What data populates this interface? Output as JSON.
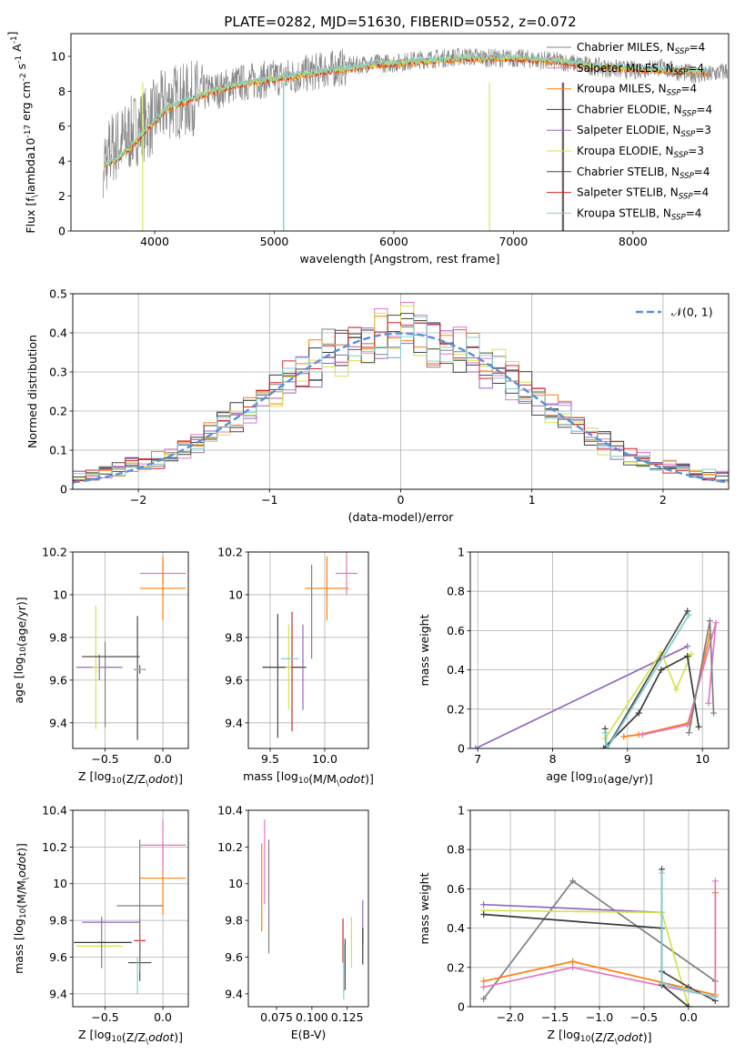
{
  "figure_title": "PLATE=0282, MJD=51630, FIBERID=0552, z=0.072",
  "series_colors": [
    "#808080",
    "#e377c2",
    "#ff7f0e",
    "#3a3a3a",
    "#9467bd",
    "#d4e34a",
    "#4a4a4a",
    "#d62728",
    "#7fd0d0"
  ],
  "chart_data": [
    {
      "id": "spectrum",
      "type": "line",
      "xlabel": "wavelength [Angstrom, rest frame]",
      "ylabel": "Flux [f$_\\lambda$10$^{-17}$ erg cm$^{-2}$ s$^{-1}$ A$^{-1}$]",
      "xlim": [
        3300,
        8800
      ],
      "ylim": [
        0,
        11.3
      ],
      "xticks": [
        4000,
        5000,
        6000,
        7000,
        8000
      ],
      "yticks": [
        0,
        2,
        4,
        6,
        8,
        10
      ],
      "grid": false,
      "legend_position": "right",
      "legend": [
        {
          "imf": "Chabrier MILES",
          "nssp": "4"
        },
        {
          "imf": "Salpeter MILES",
          "nssp": "4"
        },
        {
          "imf": "Kroupa MILES",
          "nssp": "4"
        },
        {
          "imf": "Chabrier ELODIE",
          "nssp": "4"
        },
        {
          "imf": "Salpeter ELODIE",
          "nssp": "3"
        },
        {
          "imf": "Kroupa ELODIE",
          "nssp": "3"
        },
        {
          "imf": "Chabrier STELIB",
          "nssp": "4"
        },
        {
          "imf": "Salpeter STELIB",
          "nssp": "4"
        },
        {
          "imf": "Kroupa STELIB",
          "nssp": "4"
        }
      ],
      "data_wavelength": [
        3550,
        3650,
        3750,
        3850,
        3950,
        4050,
        4150,
        4250,
        4350,
        4450,
        4550,
        4650,
        4750,
        4850,
        4950,
        5050,
        5200,
        5400,
        5600,
        5800,
        6000,
        6200,
        6400,
        6600,
        6800,
        7000,
        7200,
        7400,
        7600,
        7800,
        8000,
        8200,
        8400,
        8600,
        8800
      ],
      "data_flux": [
        3.9,
        4.8,
        5.2,
        5.9,
        6.2,
        7.0,
        7.5,
        7.4,
        7.7,
        8.0,
        8.1,
        8.4,
        8.5,
        8.6,
        8.7,
        8.8,
        8.9,
        9.2,
        9.4,
        9.6,
        9.6,
        9.8,
        9.9,
        10.0,
        9.9,
        9.9,
        9.8,
        9.7,
        9.5,
        9.3,
        9.2,
        9.4,
        9.1,
        8.9,
        9.2
      ],
      "model_wavelength": [
        3600,
        3700,
        3800,
        3900,
        4000,
        4100,
        4200,
        4300,
        4400,
        4500,
        4600,
        4700,
        4800,
        4900,
        5000,
        5200,
        5400,
        5600,
        5800,
        6000,
        6200,
        6400,
        6600,
        6800,
        7000,
        7200,
        7400,
        7600,
        7800,
        8000,
        8200,
        8400,
        8600
      ],
      "model_flux": [
        3.8,
        4.2,
        4.8,
        5.6,
        6.3,
        7.0,
        7.3,
        7.5,
        7.8,
        8.0,
        8.2,
        8.4,
        8.5,
        8.6,
        8.7,
        8.9,
        9.1,
        9.3,
        9.5,
        9.6,
        9.7,
        9.8,
        9.9,
        9.9,
        9.9,
        9.8,
        9.7,
        9.5,
        9.4,
        9.3,
        9.2,
        9.2,
        9.1
      ]
    },
    {
      "id": "residuals",
      "type": "line",
      "xlabel": "(data-model)/error",
      "ylabel": "Normed distribution",
      "xlim": [
        -2.5,
        2.5
      ],
      "ylim": [
        0,
        0.5
      ],
      "xticks": [
        -2,
        -1,
        0,
        1,
        2
      ],
      "yticks": [
        0.0,
        0.1,
        0.2,
        0.3,
        0.4,
        0.5
      ],
      "grid": true,
      "legend_position": "top-right",
      "gaussian_label": "𝒩(0, 1)",
      "hist_bin_width": 0.1
    },
    {
      "id": "age_vs_Z",
      "type": "scatter",
      "xlabel": "Z [log$_{10}$(Z/Z$_\\odot$)]",
      "ylabel": "age  [log$_{10}$(age/yr)]",
      "xlim": [
        -0.78,
        0.22
      ],
      "ylim": [
        9.28,
        10.2
      ],
      "xticks": [
        -0.5,
        0.0
      ],
      "xticklabels": [
        "−0.5",
        "0.0"
      ],
      "yticks": [
        9.4,
        9.6,
        9.8,
        10.0,
        10.2
      ],
      "grid": true,
      "points": [
        {
          "x": -0.5,
          "y": 9.58,
          "xerr": 0.0,
          "yerr": 0.2,
          "series": 0
        },
        {
          "x": -0.55,
          "y": 9.66,
          "xerr": 0.2,
          "yerr": 0.06,
          "series": 4
        },
        {
          "x": -0.58,
          "y": 9.66,
          "xerr": 0.03,
          "yerr": 0.29,
          "series": 5
        },
        {
          "x": -0.45,
          "y": 9.71,
          "xerr": 0.25,
          "yerr": 0.0,
          "series": 3
        },
        {
          "x": -0.22,
          "y": 9.61,
          "xerr": 0.0,
          "yerr": 0.29,
          "series": 6
        },
        {
          "x": -0.2,
          "y": 9.65,
          "xerr": 0.05,
          "yerr": 0.02,
          "series": 7
        },
        {
          "x": -0.2,
          "y": 9.65,
          "xerr": 0.04,
          "yerr": 0.0,
          "series": 8
        },
        {
          "x": 0.0,
          "y": 10.1,
          "xerr": 0.2,
          "yerr": 0.05,
          "series": 1
        },
        {
          "x": 0.0,
          "y": 10.03,
          "xerr": 0.2,
          "yerr": 0.15,
          "series": 2
        }
      ]
    },
    {
      "id": "age_vs_mass",
      "type": "scatter",
      "xlabel": "mass [log$_{10}$(M/M$_\\odot$)]",
      "ylabel": "",
      "xlim": [
        9.3,
        10.4
      ],
      "ylim": [
        9.28,
        10.2
      ],
      "xticks": [
        9.5,
        10.0
      ],
      "xticklabels": [
        "9.5",
        "10.0"
      ],
      "yticks": [
        9.4,
        9.6,
        9.8,
        10.0,
        10.2
      ],
      "grid": true,
      "points": [
        {
          "x": 9.57,
          "y": 9.62,
          "xerr": 0.0,
          "yerr": 0.29,
          "series": 6
        },
        {
          "x": 9.63,
          "y": 9.66,
          "xerr": 0.2,
          "yerr": 0.0,
          "series": 3
        },
        {
          "x": 9.67,
          "y": 9.66,
          "xerr": 0.03,
          "yerr": 0.2,
          "series": 5
        },
        {
          "x": 9.7,
          "y": 9.64,
          "xerr": 0.0,
          "yerr": 0.28,
          "series": 7
        },
        {
          "x": 9.68,
          "y": 9.7,
          "xerr": 0.08,
          "yerr": 0.0,
          "series": 8
        },
        {
          "x": 9.8,
          "y": 9.66,
          "xerr": 0.0,
          "yerr": 0.2,
          "series": 4
        },
        {
          "x": 9.88,
          "y": 9.92,
          "xerr": 0.0,
          "yerr": 0.22,
          "series": 0
        },
        {
          "x": 10.02,
          "y": 10.03,
          "xerr": 0.2,
          "yerr": 0.15,
          "series": 2
        },
        {
          "x": 10.2,
          "y": 10.1,
          "xerr": 0.1,
          "yerr": 0.1,
          "series": 1
        }
      ]
    },
    {
      "id": "weight_vs_age",
      "type": "line",
      "xlabel": "age  [log$_{10}$(age/yr)]",
      "ylabel": "mass weight",
      "xlim": [
        6.9,
        10.35
      ],
      "ylim": [
        0,
        1.0
      ],
      "xticks": [
        7,
        8,
        9,
        10
      ],
      "yticks": [
        0.0,
        0.2,
        0.4,
        0.6,
        0.8,
        1.0
      ],
      "grid": true,
      "series": [
        {
          "x": [
            6.97,
            9.8
          ],
          "y": [
            0.0,
            0.52
          ],
          "series": 4
        },
        {
          "x": [
            8.7,
            9.45,
            9.65,
            9.85
          ],
          "y": [
            0.05,
            0.49,
            0.3,
            0.48
          ],
          "series": 5
        },
        {
          "x": [
            8.68,
            9.15,
            9.45,
            9.8,
            9.95
          ],
          "y": [
            0.0,
            0.18,
            0.4,
            0.47,
            0.11
          ],
          "series": 3
        },
        {
          "x": [
            8.7,
            8.72,
            9.8
          ],
          "y": [
            0.1,
            0.0,
            0.7
          ],
          "series": 6
        },
        {
          "x": [
            8.7,
            8.73,
            9.82
          ],
          "y": [
            0.08,
            0.0,
            0.68
          ],
          "series": 8
        },
        {
          "x": [
            8.95,
            9.15,
            9.82,
            10.1
          ],
          "y": [
            0.06,
            0.07,
            0.13,
            0.58
          ],
          "series": 2
        },
        {
          "x": [
            9.2,
            9.8,
            10.18,
            10.08
          ],
          "y": [
            0.07,
            0.12,
            0.64,
            0.23
          ],
          "series": 1
        },
        {
          "x": [
            9.82,
            10.1,
            10.15
          ],
          "y": [
            0.08,
            0.65,
            0.18
          ],
          "series": 0
        }
      ]
    },
    {
      "id": "mass_vs_Z",
      "type": "scatter",
      "xlabel": "Z [log$_{10}$(Z/Z$_\\odot$)]",
      "ylabel": "mass [log$_{10}$(M/M$_\\odot$)]",
      "xlim": [
        -0.78,
        0.22
      ],
      "ylim": [
        9.33,
        10.4
      ],
      "xticks": [
        -0.5,
        0.0
      ],
      "xticklabels": [
        "−0.5",
        "0.0"
      ],
      "yticks": [
        9.4,
        9.6,
        9.8,
        10.0,
        10.2,
        10.4
      ],
      "grid": true,
      "points": [
        {
          "x": -0.55,
          "y": 9.66,
          "xerr": 0.2,
          "yerr": 0.0,
          "series": 5
        },
        {
          "x": -0.53,
          "y": 9.68,
          "xerr": 0.03,
          "yerr": 0.14,
          "series": 0
        },
        {
          "x": -0.52,
          "y": 9.68,
          "xerr": 0.25,
          "yerr": 0.0,
          "series": 3
        },
        {
          "x": -0.45,
          "y": 9.79,
          "xerr": 0.25,
          "yerr": 0.0,
          "series": 4
        },
        {
          "x": -0.2,
          "y": 9.69,
          "xerr": 0.05,
          "yerr": 0.12,
          "series": 7
        },
        {
          "x": -0.2,
          "y": 9.57,
          "xerr": 0.1,
          "yerr": 0.1,
          "series": 6
        },
        {
          "x": -0.22,
          "y": 9.5,
          "xerr": 0.0,
          "yerr": 0.1,
          "series": 8
        },
        {
          "x": -0.2,
          "y": 9.88,
          "xerr": 0.2,
          "yerr": 0.36,
          "series": 0
        },
        {
          "x": 0.0,
          "y": 10.03,
          "xerr": 0.2,
          "yerr": 0.2,
          "series": 2
        },
        {
          "x": 0.0,
          "y": 10.21,
          "xerr": 0.2,
          "yerr": 0.14,
          "series": 1
        }
      ]
    },
    {
      "id": "mass_vs_ebv",
      "type": "scatter",
      "xlabel": "E(B-V)",
      "ylabel": "",
      "xlim": [
        0.055,
        0.14
      ],
      "ylim": [
        9.33,
        10.4
      ],
      "xticks": [
        0.075,
        0.1,
        0.125
      ],
      "xticklabels": [
        "0.075",
        "0.100",
        "0.125"
      ],
      "yticks": [
        9.4,
        9.6,
        9.8,
        10.0,
        10.2,
        10.4
      ],
      "grid": false,
      "points": [
        {
          "x": 0.0645,
          "y": 9.98,
          "xerr": 0.0,
          "yerr": 0.24,
          "series": 2
        },
        {
          "x": 0.0665,
          "y": 10.12,
          "xerr": 0.0,
          "yerr": 0.23,
          "series": 1
        },
        {
          "x": 0.0695,
          "y": 9.93,
          "xerr": 0.0,
          "yerr": 0.31,
          "series": 0
        },
        {
          "x": 0.122,
          "y": 9.69,
          "xerr": 0.0,
          "yerr": 0.12,
          "series": 7
        },
        {
          "x": 0.1225,
          "y": 9.52,
          "xerr": 0.0,
          "yerr": 0.15,
          "series": 8
        },
        {
          "x": 0.1235,
          "y": 9.56,
          "xerr": 0.0,
          "yerr": 0.14,
          "series": 6
        },
        {
          "x": 0.128,
          "y": 9.68,
          "xerr": 0.0,
          "yerr": 0.14,
          "series": 5
        },
        {
          "x": 0.136,
          "y": 9.79,
          "xerr": 0.0,
          "yerr": 0.12,
          "series": 4
        },
        {
          "x": 0.136,
          "y": 9.66,
          "xerr": 0.0,
          "yerr": 0.1,
          "series": 3
        }
      ]
    },
    {
      "id": "weight_vs_Z",
      "type": "line",
      "xlabel": "Z [log$_{10}$(Z/Z$_\\odot$)]",
      "ylabel": "mass weight",
      "xlim": [
        -2.45,
        0.45
      ],
      "ylim": [
        0,
        1.0
      ],
      "xticks": [
        -2.0,
        -1.5,
        -1.0,
        -0.5,
        0.0
      ],
      "xticklabels": [
        "−2.0",
        "−1.5",
        "−1.0",
        "−0.5",
        "0.0"
      ],
      "yticks": [
        0.0,
        0.2,
        0.4,
        0.6,
        0.8,
        1.0
      ],
      "grid": true,
      "series": [
        {
          "x": [
            -2.3,
            -1.3,
            0.3
          ],
          "y": [
            0.04,
            0.64,
            0.13
          ],
          "series": 0
        },
        {
          "x": [
            -2.3,
            -1.3,
            0.3,
            0.3
          ],
          "y": [
            0.13,
            0.23,
            0.06,
            0.58
          ],
          "series": 2
        },
        {
          "x": [
            -2.3,
            -1.3,
            0.3,
            0.3
          ],
          "y": [
            0.1,
            0.2,
            0.05,
            0.64
          ],
          "series": 1
        },
        {
          "x": [
            -2.3,
            -0.3
          ],
          "y": [
            0.52,
            0.48
          ],
          "series": 4
        },
        {
          "x": [
            -2.3,
            -0.3,
            0.0
          ],
          "y": [
            0.49,
            0.48,
            0.0
          ],
          "series": 5
        },
        {
          "x": [
            -2.3,
            -0.3,
            -0.3,
            0.0,
            0.0
          ],
          "y": [
            0.47,
            0.4,
            0.11,
            0.0,
            0.0
          ],
          "series": 3
        },
        {
          "x": [
            -0.3,
            -0.3,
            0.0,
            0.3
          ],
          "y": [
            0.7,
            0.18,
            0.1,
            0.03
          ],
          "series": 6
        },
        {
          "x": [
            -0.3,
            -0.3,
            0.0,
            0.3
          ],
          "y": [
            0.68,
            0.12,
            0.08,
            0.05
          ],
          "series": 8
        }
      ]
    }
  ]
}
